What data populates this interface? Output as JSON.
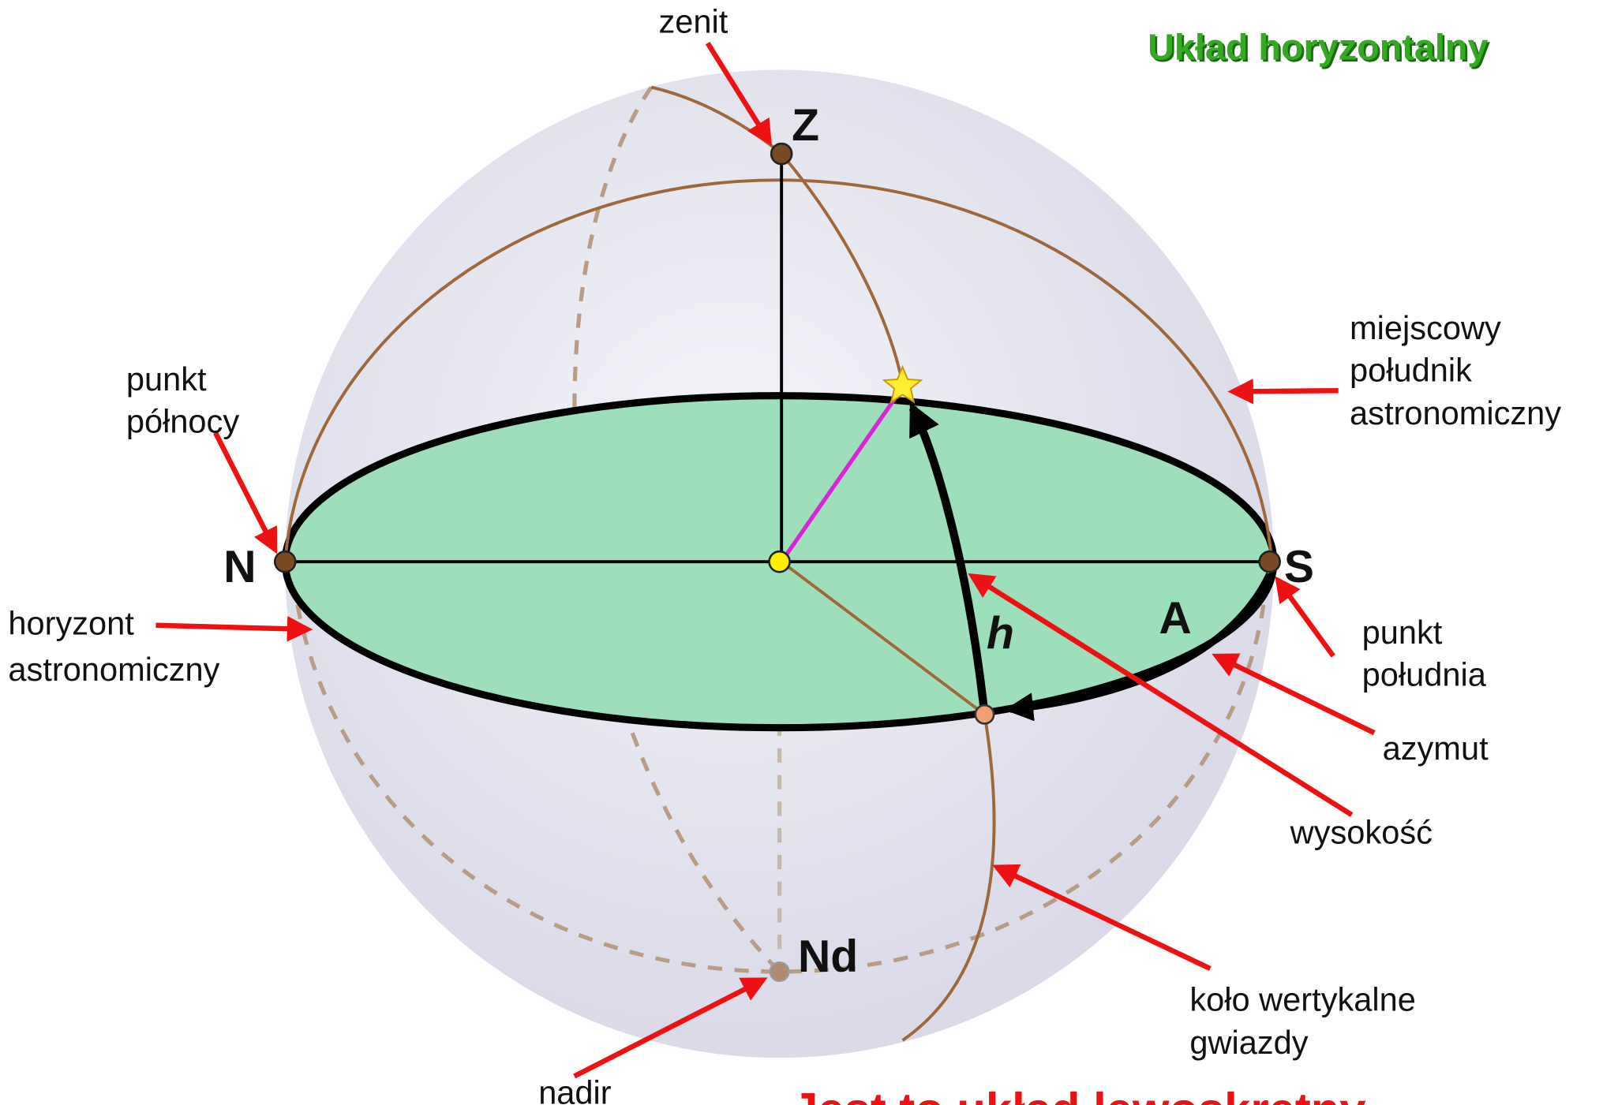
{
  "title": "Układ  horyzontalny",
  "points": {
    "zenith": "Z",
    "north": "N",
    "south": "S",
    "nadir": "Nd",
    "azimuth": "A",
    "altitude": "h"
  },
  "labels": {
    "zenit": [
      "zenit"
    ],
    "punkt_polnocy": [
      "punkt",
      "północy"
    ],
    "horyzont": [
      "horyzont",
      "astronomiczny"
    ],
    "poludnik": [
      "miejscowy",
      "południk",
      "astronomiczny"
    ],
    "punkt_poludnia": [
      "punkt",
      "południa"
    ],
    "azymut": [
      "azymut"
    ],
    "wysokosc": [
      "wysokość"
    ],
    "kolo": [
      "koło wertykalne",
      "gwiazdy"
    ],
    "nadir": [
      "nadir"
    ]
  },
  "note": "Jest to układ lewoskrętny"
}
